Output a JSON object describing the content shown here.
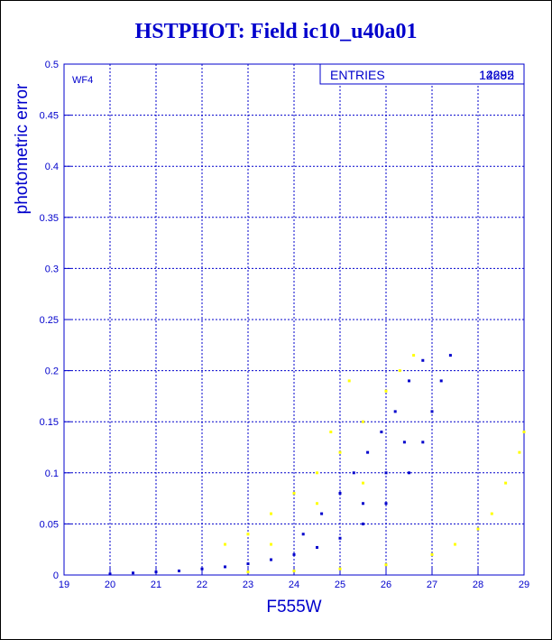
{
  "chart_data": {
    "type": "scatter",
    "title": "HSTPHOT: Field ic10_u40a01",
    "xlabel": "F555W",
    "ylabel": "photometric error",
    "xlim": [
      19,
      29
    ],
    "ylim": [
      0,
      0.5
    ],
    "x_ticks": [
      "19",
      "20",
      "21",
      "22",
      "23",
      "24",
      "25",
      "26",
      "27",
      "28",
      "29"
    ],
    "y_ticks": [
      "0",
      "0.05",
      "0.1",
      "0.15",
      "0.2",
      "0.25",
      "0.3",
      "0.35",
      "0.4",
      "0.45",
      "0.5"
    ],
    "grid": true,
    "panel_label": "WF4",
    "stats_box": {
      "label": "ENTRIES",
      "values": [
        "12695",
        "14282"
      ]
    },
    "colors": {
      "text": "#0000cc",
      "series_blue": "#0000cc",
      "series_yellow": "#ffff00",
      "grid": "#0000cc"
    },
    "series": [
      {
        "color": "#0000cc",
        "points": [
          [
            20.0,
            0.001
          ],
          [
            20.5,
            0.002
          ],
          [
            21.0,
            0.003
          ],
          [
            21.5,
            0.004
          ],
          [
            22.0,
            0.006
          ],
          [
            22.5,
            0.008
          ],
          [
            23.0,
            0.011
          ],
          [
            23.5,
            0.015
          ],
          [
            24.0,
            0.02
          ],
          [
            24.5,
            0.027
          ],
          [
            25.0,
            0.036
          ],
          [
            25.5,
            0.05
          ],
          [
            26.0,
            0.07
          ],
          [
            26.5,
            0.1
          ],
          [
            26.8,
            0.13
          ],
          [
            27.0,
            0.16
          ],
          [
            27.2,
            0.19
          ],
          [
            27.4,
            0.215
          ],
          [
            24.2,
            0.04
          ],
          [
            24.6,
            0.06
          ],
          [
            25.0,
            0.08
          ],
          [
            25.3,
            0.1
          ],
          [
            25.6,
            0.12
          ],
          [
            25.9,
            0.14
          ],
          [
            26.2,
            0.16
          ],
          [
            26.5,
            0.19
          ],
          [
            26.8,
            0.21
          ],
          [
            25.5,
            0.07
          ],
          [
            26.0,
            0.1
          ],
          [
            26.4,
            0.13
          ]
        ]
      },
      {
        "color": "#ffff00",
        "points": [
          [
            22.5,
            0.03
          ],
          [
            23.0,
            0.04
          ],
          [
            23.5,
            0.06
          ],
          [
            24.0,
            0.08
          ],
          [
            24.5,
            0.1
          ],
          [
            25.0,
            0.12
          ],
          [
            25.5,
            0.15
          ],
          [
            26.0,
            0.18
          ],
          [
            26.3,
            0.2
          ],
          [
            26.6,
            0.215
          ],
          [
            23.5,
            0.03
          ],
          [
            24.5,
            0.07
          ],
          [
            25.5,
            0.09
          ],
          [
            24.8,
            0.14
          ],
          [
            25.2,
            0.19
          ],
          [
            23.0,
            0.003
          ],
          [
            24.0,
            0.004
          ],
          [
            25.0,
            0.006
          ],
          [
            26.0,
            0.01
          ],
          [
            27.0,
            0.02
          ],
          [
            27.5,
            0.03
          ],
          [
            28.0,
            0.045
          ],
          [
            28.3,
            0.06
          ],
          [
            28.6,
            0.09
          ],
          [
            28.9,
            0.12
          ],
          [
            29.0,
            0.14
          ]
        ]
      }
    ]
  }
}
